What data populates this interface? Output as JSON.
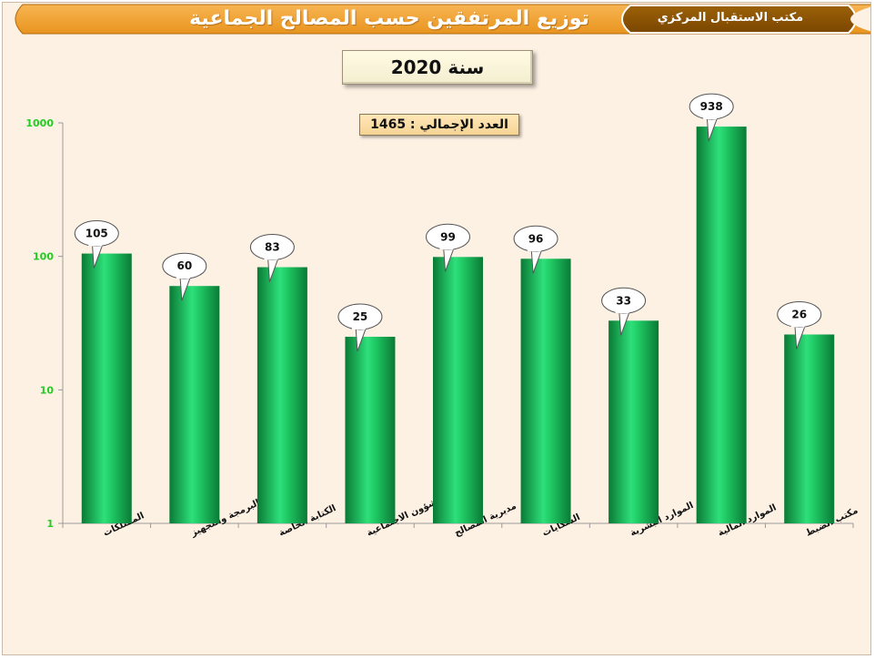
{
  "header": {
    "title": "توزيع المرتفقين حسب المصالح الجماعية",
    "office": "مكتب الاستقبال المركزي"
  },
  "year_label": "سنة 2020",
  "total_label": "العدد الإجمالي : 1465",
  "colors": {
    "banner_orange": "#f3a53a",
    "office_brown": "#8a5200",
    "bar_green": "#1db954",
    "axis_tick": "#22cc22",
    "background": "#fdf1e4"
  },
  "chart_data": {
    "type": "bar",
    "categories": [
      "الممتلكات",
      "البرمجة والتجهيز",
      "الكتابة الخاصة",
      "الشؤون الاجتماعية",
      "مديرية المصالح",
      "الشكايات",
      "الموارد البشرية",
      "الموارد المالية",
      "مكتب الضبط"
    ],
    "values": [
      105,
      60,
      83,
      25,
      99,
      96,
      33,
      938,
      26
    ],
    "y_scale": "log",
    "ylim": [
      1,
      1000
    ],
    "y_ticks": [
      "1",
      "10",
      "100",
      "1000"
    ],
    "data_labels": [
      "105",
      "60",
      "83",
      "25",
      "99",
      "96",
      "33",
      "938",
      "26"
    ],
    "grid": false,
    "legend": "none"
  }
}
